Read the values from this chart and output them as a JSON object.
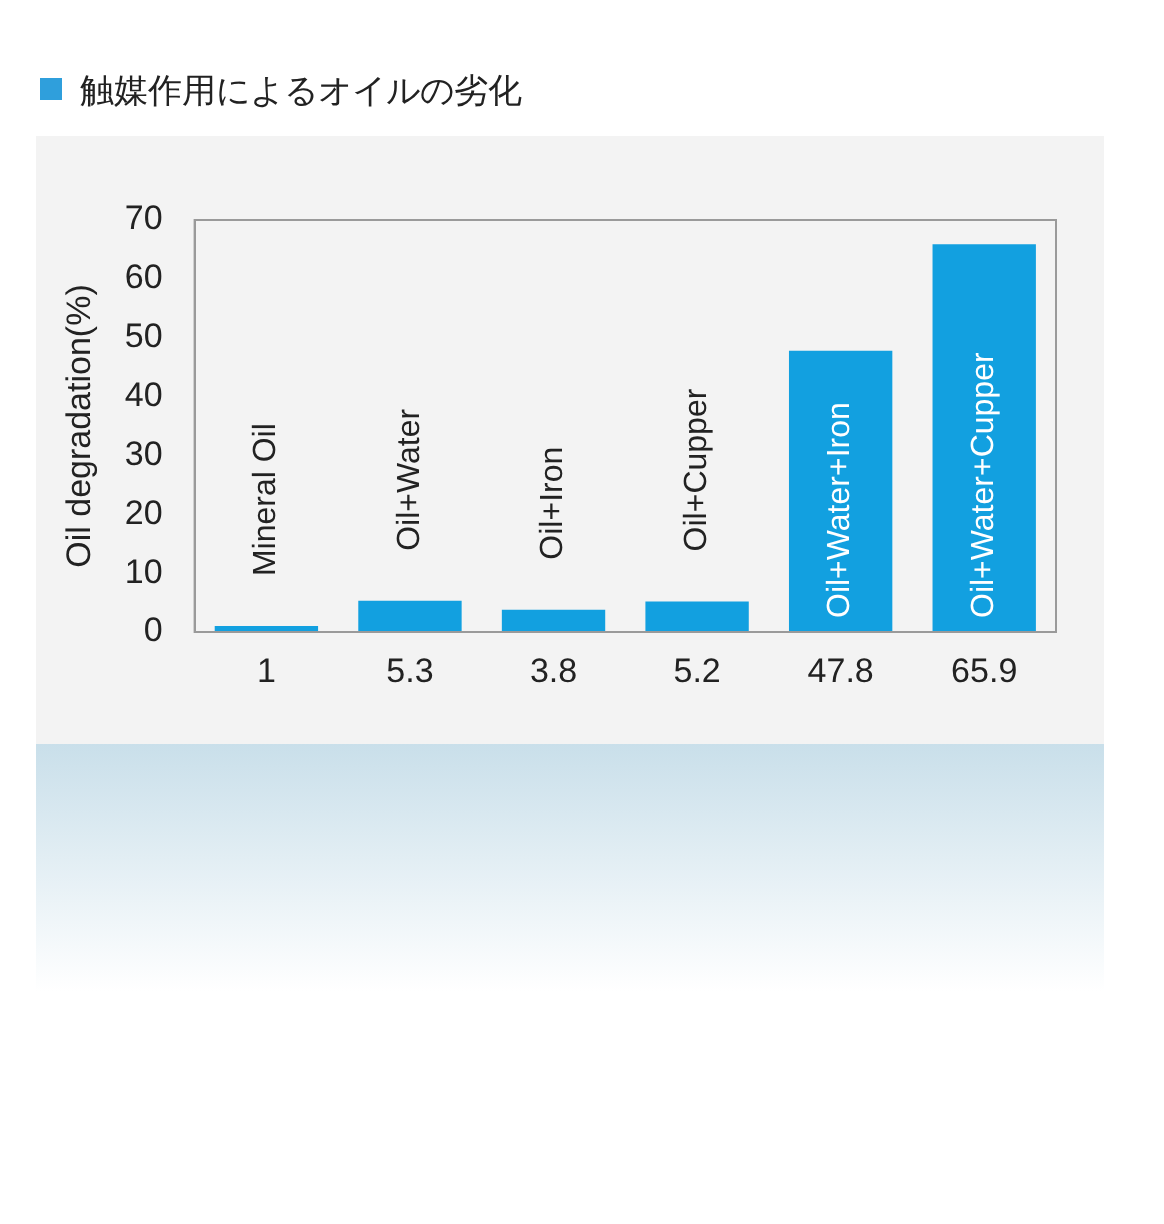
{
  "chart_data": {
    "type": "bar",
    "title": "触媒作用によるオイルの劣化",
    "ylabel": "Oil degradation(%)",
    "categories": [
      "Mineral Oil",
      "Oil+Water",
      "Oil+Iron",
      "Oil+Cupper",
      "Oil+Water+Iron",
      "Oil+Water+Cupper"
    ],
    "values": [
      1,
      5.3,
      3.8,
      5.2,
      47.8,
      65.9
    ],
    "color": "#12a0e0",
    "ylim": [
      0,
      70
    ],
    "yticks": [
      0,
      10,
      20,
      30,
      40,
      50,
      60,
      70
    ],
    "data_labels": true,
    "grid": false,
    "legend": false
  }
}
